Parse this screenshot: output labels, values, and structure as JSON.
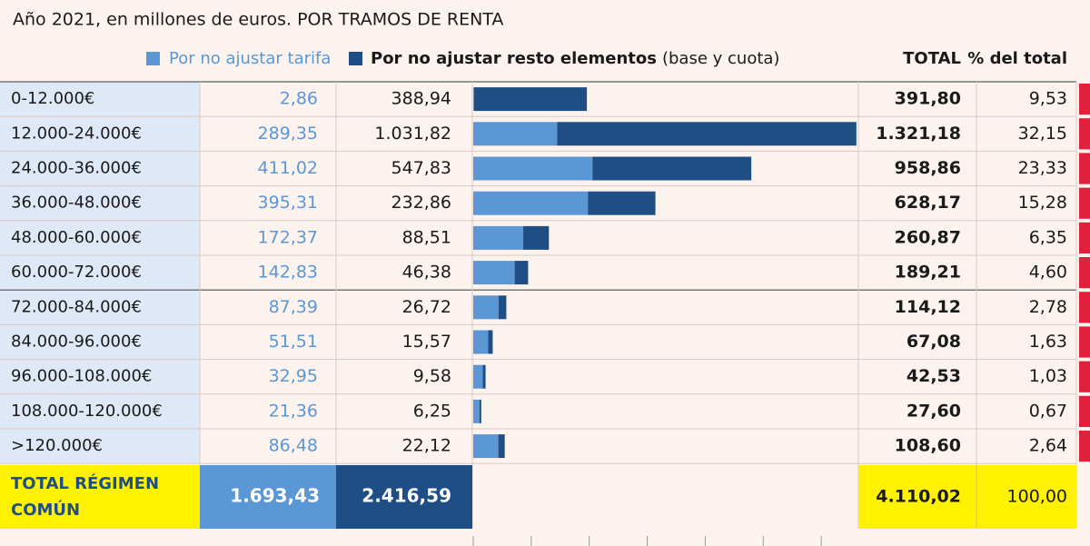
{
  "chart_data": {
    "type": "bar",
    "title": "Año 2021, en millones de euros. POR TRAMOS DE RENTA",
    "categories": [
      "0-12.000€",
      "12.000-24.000€",
      "24.000-36.000€",
      "36.000-48.000€",
      "48.000-60.000€",
      "60.000-72.000€",
      "72.000-84.000€",
      "84.000-96.000€",
      "96.000-108.000€",
      "108.000-120.000€",
      ">120.000€"
    ],
    "series": [
      {
        "name": "Por no ajustar tarifa",
        "color": "#5b97d5",
        "values": [
          2.86,
          289.35,
          411.02,
          395.31,
          172.37,
          142.83,
          87.39,
          51.51,
          32.95,
          21.36,
          86.48
        ],
        "value_labels": [
          "2,86",
          "289,35",
          "411,02",
          "395,31",
          "172,37",
          "142,83",
          "87,39",
          "51,51",
          "32,95",
          "21,36",
          "86,48"
        ]
      },
      {
        "name": "Por no ajustar resto elementos",
        "name_detail": "(base y cuota)",
        "color": "#1f4e85",
        "values": [
          388.94,
          1031.82,
          547.83,
          232.86,
          88.51,
          46.38,
          26.72,
          15.57,
          9.58,
          6.25,
          22.12
        ],
        "value_labels": [
          "388,94",
          "1.031,82",
          "547,83",
          "232,86",
          "88,51",
          "46,38",
          "26,72",
          "15,57",
          "9,58",
          "6,25",
          "22,12"
        ]
      }
    ],
    "totals": {
      "label": "TOTAL",
      "values": [
        391.8,
        1321.18,
        958.86,
        628.17,
        260.87,
        189.21,
        114.12,
        67.08,
        42.53,
        27.6,
        108.6
      ],
      "value_labels": [
        "391,80",
        "1.321,18",
        "958,86",
        "628,17",
        "260,87",
        "189,21",
        "114,12",
        "67,08",
        "42,53",
        "27,60",
        "108,60"
      ]
    },
    "shares": {
      "label": "% del total",
      "values": [
        9.53,
        32.15,
        23.33,
        15.28,
        6.35,
        4.6,
        2.78,
        1.63,
        1.03,
        0.67,
        2.64
      ],
      "value_labels": [
        "9,53",
        "32,15",
        "23,33",
        "15,28",
        "6,35",
        "4,60",
        "2,78",
        "1,63",
        "1,03",
        "0,67",
        "2,64"
      ]
    },
    "total_row": {
      "label": "TOTAL RÉGIMEN COMÚN",
      "values": [
        1693.43,
        2416.59,
        4110.02,
        100.0
      ],
      "value_labels": [
        "1.693,43",
        "2.416,59",
        "4.110,02",
        "100,00"
      ]
    },
    "xlim": [
      0,
      1328
    ],
    "xticks": [
      0,
      200,
      400,
      600,
      800,
      1000,
      1200
    ],
    "stacked": true,
    "orientation": "horizontal"
  }
}
